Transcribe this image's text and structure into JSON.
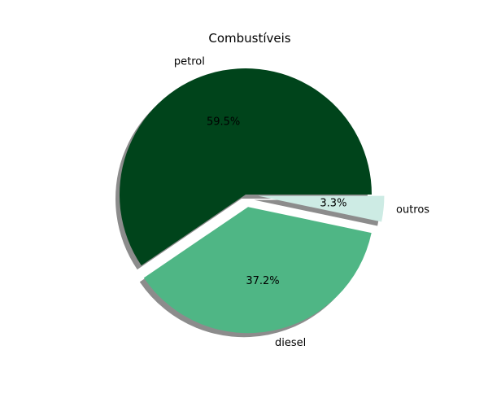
{
  "chart_data": {
    "type": "pie",
    "title": "Combustíveis",
    "categories": [
      "petrol",
      "diesel",
      "outros"
    ],
    "values": [
      59.5,
      37.2,
      3.3
    ],
    "percent_labels": [
      "59.5%",
      "37.2%",
      "3.3%"
    ],
    "colors": [
      "#00441b",
      "#4fb685",
      "#cdebe4"
    ],
    "explode": [
      0,
      0.1,
      0.1
    ],
    "shadow": true,
    "start_angle_deg": 0,
    "direction": "counterclockwise"
  }
}
